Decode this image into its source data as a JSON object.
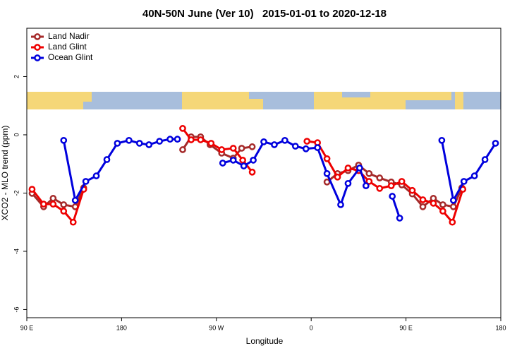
{
  "chart_data": {
    "type": "line",
    "title": "40N-50N June (Ver 10)   2015-01-01 to 2020-12-18",
    "x_label": "Longitude",
    "y_label": "XCO2 - MLO trend (ppm)",
    "xlim": [
      90,
      540
    ],
    "ylim": [
      -6.28,
      3.66
    ],
    "xticks": [
      {
        "value": 90,
        "label": "90 E"
      },
      {
        "value": 180,
        "label": "180"
      },
      {
        "value": 270,
        "label": "90 W"
      },
      {
        "value": 360,
        "label": "0"
      },
      {
        "value": 450,
        "label": "90 E"
      },
      {
        "value": 540,
        "label": "180"
      }
    ],
    "yticks": [
      -6,
      -4,
      -2,
      0,
      2
    ],
    "legend": "topleft",
    "series": [
      {
        "name": "Land Nadir",
        "color": "#a52a2a",
        "x": [
          95,
          106,
          115,
          125,
          136,
          144,
          null,
          238,
          246,
          255,
          264,
          275,
          286,
          294,
          304,
          null,
          375,
          385,
          395,
          405,
          415,
          425,
          436,
          446,
          456,
          466,
          476,
          485,
          495,
          503
        ],
        "values": [
          -2.01,
          -2.47,
          -2.18,
          -2.4,
          -2.47,
          -1.82,
          null,
          -0.51,
          -0.07,
          -0.07,
          -0.34,
          -0.63,
          -0.8,
          -0.46,
          -0.41,
          null,
          -1.62,
          -1.33,
          -1.23,
          -1.04,
          -1.33,
          -1.48,
          -1.62,
          -1.72,
          -2.03,
          -2.47,
          -2.18,
          -2.4,
          -2.47,
          -1.82
        ]
      },
      {
        "name": "Land Glint",
        "color": "#ee0000",
        "x": [
          95,
          106,
          115,
          125,
          134,
          144,
          null,
          238,
          246,
          255,
          265,
          275,
          286,
          295,
          304,
          null,
          356,
          366,
          375,
          385,
          395,
          405,
          415,
          425,
          436,
          446,
          456,
          466,
          476,
          485,
          494,
          504
        ],
        "values": [
          -1.87,
          -2.38,
          -2.38,
          -2.62,
          -3.0,
          -1.87,
          null,
          0.22,
          -0.17,
          -0.17,
          -0.29,
          -0.51,
          -0.46,
          -0.87,
          -1.28,
          null,
          -0.22,
          -0.27,
          -0.82,
          -1.45,
          -1.14,
          -1.23,
          -1.6,
          -1.84,
          -1.75,
          -1.6,
          -1.91,
          -2.23,
          -2.35,
          -2.62,
          -3.0,
          -1.87
        ]
      },
      {
        "name": "Ocean Glint",
        "color": "#0000dd",
        "x": [
          125,
          136,
          146,
          156,
          166,
          176,
          187,
          197,
          206,
          216,
          226,
          233,
          null,
          276,
          286,
          296,
          305,
          315,
          325,
          335,
          345,
          355,
          366,
          375,
          388,
          395,
          406,
          412,
          null,
          437,
          444,
          null,
          484,
          495,
          505,
          515,
          525,
          535
        ],
        "values": [
          -0.19,
          -2.25,
          -1.6,
          -1.41,
          -0.85,
          -0.29,
          -0.19,
          -0.29,
          -0.34,
          -0.22,
          -0.15,
          -0.15,
          null,
          -0.97,
          -0.87,
          -1.07,
          -0.87,
          -0.24,
          -0.34,
          -0.19,
          -0.39,
          -0.48,
          -0.44,
          -1.33,
          -2.4,
          -1.67,
          -1.14,
          -1.75,
          null,
          -2.11,
          -2.86,
          null,
          -0.19,
          -2.25,
          -1.6,
          -1.41,
          -0.85,
          -0.29
        ]
      }
    ]
  }
}
